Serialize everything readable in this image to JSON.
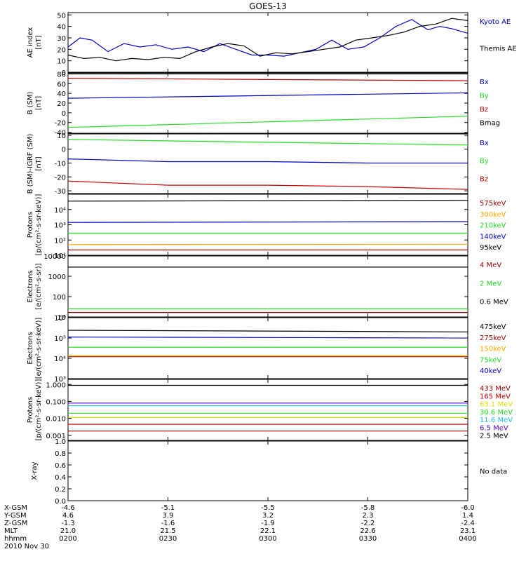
{
  "title": "GOES-13",
  "colors": {
    "black": "#000000",
    "red": "#cc0000",
    "green": "#22dd22",
    "blue": "#0000cc",
    "orange": "#ffaa00",
    "yellow": "#dddd00",
    "cyan": "#22bbee",
    "purple": "#5500cc",
    "darkred": "#990000"
  },
  "chart_data": [
    {
      "type": "line",
      "ylabel": "AE index\n[nT]",
      "ylim": [
        0,
        52
      ],
      "yscale": "linear",
      "yticks": [
        "0",
        "10",
        "20",
        "30",
        "40",
        "50"
      ],
      "ytick_values": [
        0,
        10,
        20,
        30,
        40,
        50
      ],
      "series": [
        {
          "name": "Kyoto AE",
          "color": "blue",
          "x": [
            0,
            0.03,
            0.06,
            0.1,
            0.14,
            0.18,
            0.22,
            0.26,
            0.3,
            0.34,
            0.38,
            0.42,
            0.46,
            0.5,
            0.54,
            0.58,
            0.62,
            0.66,
            0.7,
            0.74,
            0.78,
            0.82,
            0.86,
            0.9,
            0.93,
            0.96,
            1.0
          ],
          "values": [
            22,
            30,
            28,
            18,
            25,
            22,
            24,
            20,
            22,
            18,
            25,
            20,
            15,
            15,
            14,
            17,
            20,
            28,
            20,
            22,
            30,
            40,
            46,
            37,
            40,
            38,
            34
          ]
        },
        {
          "name": "Themis AE",
          "color": "black",
          "x": [
            0,
            0.04,
            0.08,
            0.12,
            0.16,
            0.2,
            0.24,
            0.28,
            0.32,
            0.36,
            0.4,
            0.44,
            0.48,
            0.52,
            0.56,
            0.6,
            0.64,
            0.68,
            0.72,
            0.76,
            0.8,
            0.84,
            0.88,
            0.92,
            0.96,
            1.0
          ],
          "values": [
            15,
            12,
            13,
            10,
            12,
            11,
            13,
            12,
            18,
            22,
            25,
            23,
            14,
            17,
            16,
            18,
            20,
            22,
            28,
            30,
            32,
            35,
            40,
            42,
            47,
            45
          ]
        }
      ]
    },
    {
      "type": "line",
      "ylabel": "B (SM)\n[nT]",
      "ylim": [
        -42,
        82
      ],
      "yscale": "linear",
      "yticks": [
        "-40",
        "-20",
        "0",
        "20",
        "40",
        "60",
        "80"
      ],
      "ytick_values": [
        -40,
        -20,
        0,
        20,
        40,
        60,
        80
      ],
      "series": [
        {
          "name": "Bx",
          "color": "blue",
          "x": [
            0,
            1
          ],
          "values": [
            30,
            41
          ]
        },
        {
          "name": "By",
          "color": "green",
          "x": [
            0,
            1
          ],
          "values": [
            -30,
            -7
          ]
        },
        {
          "name": "Bz",
          "color": "red",
          "x": [
            0,
            1
          ],
          "values": [
            71,
            66
          ]
        },
        {
          "name": "Bmag",
          "color": "black",
          "x": [
            0,
            1
          ],
          "values": [
            80,
            80
          ]
        }
      ]
    },
    {
      "type": "line",
      "ylabel": "B (SM)-IGRF (SM)\n[nT]",
      "ylim": [
        -32,
        11
      ],
      "yscale": "linear",
      "yticks": [
        "-30",
        "-20",
        "-10",
        "0",
        "10"
      ],
      "ytick_values": [
        -30,
        -20,
        -10,
        0,
        10
      ],
      "series": [
        {
          "name": "Bx",
          "color": "blue",
          "x": [
            0,
            0.25,
            0.5,
            0.75,
            1
          ],
          "values": [
            -7,
            -9,
            -9,
            -10,
            -10
          ]
        },
        {
          "name": "By",
          "color": "green",
          "x": [
            0,
            0.25,
            0.5,
            0.75,
            1
          ],
          "values": [
            7,
            6,
            5,
            4,
            3
          ]
        },
        {
          "name": "Bz",
          "color": "red",
          "x": [
            0,
            0.25,
            0.5,
            0.75,
            1
          ],
          "values": [
            -23,
            -26,
            -26,
            -27,
            -29
          ]
        }
      ]
    },
    {
      "type": "line",
      "ylabel": "Protons\n[p/(cm²-s-sr-keV)]",
      "ylim": [
        1,
        5
      ],
      "yscale": "log",
      "yticks": [
        "10¹",
        "10²",
        "10³",
        "10⁴"
      ],
      "ytick_values": [
        1,
        2,
        3,
        4
      ],
      "series": [
        {
          "name": "575keV",
          "color": "darkred",
          "x": [
            0,
            1
          ],
          "values": [
            1.35,
            1.35
          ]
        },
        {
          "name": "300keV",
          "color": "orange",
          "x": [
            0,
            1
          ],
          "values": [
            1.7,
            1.72
          ]
        },
        {
          "name": "210keV",
          "color": "green",
          "x": [
            0,
            1
          ],
          "values": [
            2.45,
            2.45
          ]
        },
        {
          "name": "140keV",
          "color": "blue",
          "x": [
            0,
            1
          ],
          "values": [
            3.15,
            3.2
          ]
        },
        {
          "name": "95keV",
          "color": "black",
          "x": [
            0,
            1
          ],
          "values": [
            4.55,
            4.6
          ]
        }
      ]
    },
    {
      "type": "line",
      "ylabel": "Electrons\n[e/(cm²-s-sr)]",
      "ylim": [
        1.0,
        4.0
      ],
      "yscale": "log",
      "yticks": [
        "10",
        "100",
        "1000",
        "10000"
      ],
      "ytick_values": [
        1,
        2,
        3,
        4
      ],
      "series": [
        {
          "name": "4 MeV",
          "color": "darkred",
          "x": [
            0,
            1
          ],
          "values": [
            1.22,
            1.22
          ]
        },
        {
          "name": "2 MeV",
          "color": "green",
          "x": [
            0,
            1
          ],
          "values": [
            1.4,
            1.4
          ]
        },
        {
          "name": "0.6 MeV",
          "color": "black",
          "x": [
            0,
            1
          ],
          "values": [
            3.45,
            3.45
          ]
        }
      ]
    },
    {
      "type": "line",
      "ylabel": "Electrons\n[e/(cm²-s-sr-keV)]",
      "ylim": [
        3,
        6
      ],
      "yscale": "log",
      "yticks": [
        "10³",
        "10⁴",
        "10⁵",
        "10⁶"
      ],
      "ytick_values": [
        3,
        4,
        5,
        6
      ],
      "series": [
        {
          "name": "475keV",
          "color": "black",
          "x": [
            0,
            1
          ],
          "values": [
            5.38,
            5.3
          ]
        },
        {
          "name": "275keV",
          "color": "darkred",
          "x": [
            0,
            1
          ],
          "values": [
            4.08,
            4.08
          ]
        },
        {
          "name": "150keV",
          "color": "orange",
          "x": [
            0,
            1
          ],
          "values": [
            4.12,
            4.12
          ]
        },
        {
          "name": "75keV",
          "color": "green",
          "x": [
            0,
            1
          ],
          "values": [
            4.55,
            4.55
          ]
        },
        {
          "name": "40keV",
          "color": "blue",
          "x": [
            0,
            1
          ],
          "values": [
            5.05,
            5.0
          ]
        }
      ]
    },
    {
      "type": "line",
      "ylabel": "Protons\n[p/(cm²-s-sr-keV)]",
      "ylim": [
        -3.3,
        0.3
      ],
      "yscale": "log",
      "yticks": [
        "0.001",
        "0.010",
        "0.100",
        "1.000"
      ],
      "ytick_values": [
        -3,
        -2,
        -1,
        0
      ],
      "series": [
        {
          "name": "433 MeV",
          "color": "darkred",
          "x": [
            0,
            1
          ],
          "values": [
            -2.75,
            -2.75
          ]
        },
        {
          "name": "165 MeV",
          "color": "red",
          "x": [
            0,
            1
          ],
          "values": [
            -2.35,
            -2.35
          ]
        },
        {
          "name": "63.1 MeV",
          "color": "yellow",
          "x": [
            0,
            1
          ],
          "values": [
            -1.95,
            -1.95
          ]
        },
        {
          "name": "30.6 MeV",
          "color": "green",
          "x": [
            0,
            1
          ],
          "values": [
            -1.7,
            -1.7
          ]
        },
        {
          "name": "11.6 MeV",
          "color": "cyan",
          "x": [
            0,
            1
          ],
          "values": [
            -1.25,
            -1.25
          ]
        },
        {
          "name": "6.5 MeV",
          "color": "purple",
          "x": [
            0,
            1
          ],
          "values": [
            -1.1,
            -1.1
          ]
        },
        {
          "name": "2.5 MeV",
          "color": "black",
          "x": [
            0,
            1
          ],
          "values": [
            -0.05,
            -0.05
          ]
        }
      ]
    },
    {
      "type": "line",
      "ylabel": "X-ray",
      "ylim": [
        0,
        1.0
      ],
      "yscale": "linear",
      "yticks": [
        "0.0",
        "0.2",
        "0.4",
        "0.6",
        "0.8",
        "1.0"
      ],
      "ytick_values": [
        0,
        0.2,
        0.4,
        0.6,
        0.8,
        1.0
      ],
      "series": [],
      "note": "No data"
    }
  ],
  "footer": {
    "row_labels": [
      "X-GSM",
      "Y-GSM",
      "Z-GSM",
      "MLT",
      "hhmm",
      "2010 Nov 30"
    ],
    "columns": [
      {
        "x": "-4.6",
        "y": "4.6",
        "z": "-1.3",
        "mlt": "21.0",
        "hhmm": "0200"
      },
      {
        "x": "-5.1",
        "y": "3.9",
        "z": "-1.6",
        "mlt": "21.5",
        "hhmm": "0230"
      },
      {
        "x": "-5.5",
        "y": "3.2",
        "z": "-1.9",
        "mlt": "22.1",
        "hhmm": "0300"
      },
      {
        "x": "-5.8",
        "y": "2.3",
        "z": "-2.2",
        "mlt": "22.6",
        "hhmm": "0330"
      },
      {
        "x": "-6.0",
        "y": "1.4",
        "z": "-2.4",
        "mlt": "23.1",
        "hhmm": "0400"
      }
    ]
  }
}
